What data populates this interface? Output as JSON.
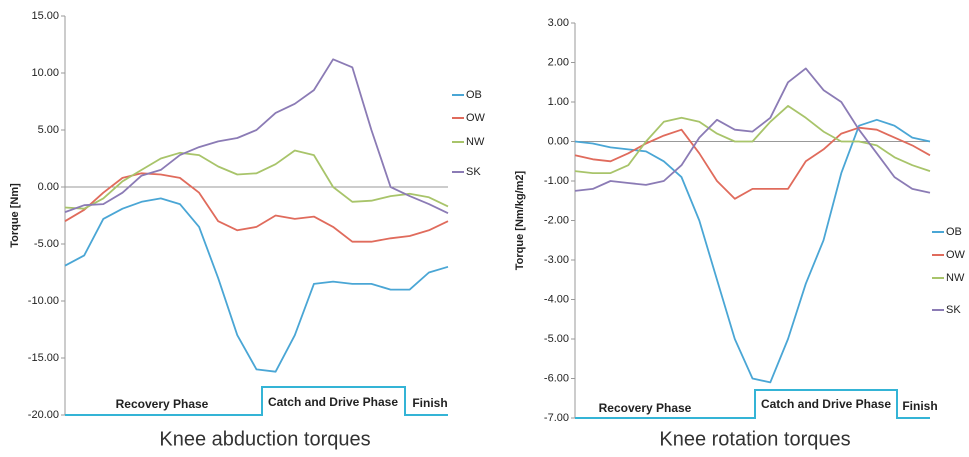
{
  "chart_data": [
    {
      "type": "line",
      "title": "Knee abduction torques",
      "ylabel": "Torque [Nm]",
      "ylim": [
        -20,
        15
      ],
      "yticks": [
        {
          "value": -20,
          "label": "-20.00"
        },
        {
          "value": -15,
          "label": "-15.00"
        },
        {
          "value": -10,
          "label": "-10.00"
        },
        {
          "value": -5,
          "label": "-5.00"
        },
        {
          "value": 0,
          "label": "0.00"
        },
        {
          "value": 5,
          "label": "5.00"
        },
        {
          "value": 10,
          "label": "10.00"
        },
        {
          "value": 15,
          "label": "15.00"
        }
      ],
      "phases": [
        "Recovery Phase",
        "Catch and Drive Phase",
        "Finish"
      ],
      "legend": "right",
      "series": [
        {
          "name": "OB",
          "color": "#4aa6d5",
          "values": [
            -6.9,
            -6,
            -2.8,
            -1.9,
            -1.3,
            -1.0,
            -1.5,
            -3.5,
            -8,
            -13,
            -16,
            -16.2,
            -13,
            -8.5,
            -8.3,
            -8.5,
            -8.5,
            -9,
            -9,
            -7.5,
            -7
          ]
        },
        {
          "name": "OW",
          "color": "#e06b5c",
          "values": [
            -3,
            -2,
            -0.5,
            0.8,
            1.2,
            1.1,
            0.8,
            -0.5,
            -3,
            -3.8,
            -3.5,
            -2.5,
            -2.8,
            -2.6,
            -3.5,
            -4.8,
            -4.8,
            -4.5,
            -4.3,
            -3.8,
            -3
          ]
        },
        {
          "name": "NW",
          "color": "#a8c46a",
          "values": [
            -1.8,
            -1.9,
            -1,
            0.5,
            1.5,
            2.5,
            3,
            2.8,
            1.8,
            1.1,
            1.2,
            2,
            3.2,
            2.8,
            0,
            -1.3,
            -1.2,
            -0.8,
            -0.6,
            -0.9,
            -1.7
          ]
        },
        {
          "name": "SK",
          "color": "#8b7bb5",
          "values": [
            -2.2,
            -1.6,
            -1.5,
            -0.5,
            1,
            1.5,
            2.8,
            3.5,
            4,
            4.3,
            5,
            6.5,
            7.3,
            8.5,
            11.2,
            10.5,
            5,
            0,
            -0.8,
            -1.5,
            -2.3
          ]
        }
      ]
    },
    {
      "type": "line",
      "title": "Knee rotation torques",
      "ylabel": "Torque [Nm/kg/m2]",
      "ylim": [
        -7,
        3
      ],
      "yticks": [
        {
          "value": -7,
          "label": "-7.00"
        },
        {
          "value": -6,
          "label": "-6.00"
        },
        {
          "value": -5,
          "label": "-5.00"
        },
        {
          "value": -4,
          "label": "-4.00"
        },
        {
          "value": -3,
          "label": "-3.00"
        },
        {
          "value": -2,
          "label": "-2.00"
        },
        {
          "value": -1,
          "label": "-1.00"
        },
        {
          "value": 0,
          "label": "0.00"
        },
        {
          "value": 1,
          "label": "1.00"
        },
        {
          "value": 2,
          "label": "2.00"
        },
        {
          "value": 3,
          "label": "3.00"
        }
      ],
      "phases": [
        "Recovery Phase",
        "Catch and Drive Phase",
        "Finish"
      ],
      "legend": "right",
      "series": [
        {
          "name": "OB",
          "color": "#4aa6d5",
          "values": [
            0,
            -0.05,
            -0.15,
            -0.2,
            -0.25,
            -0.5,
            -0.9,
            -2,
            -3.5,
            -5,
            -6,
            -6.1,
            -5,
            -3.6,
            -2.5,
            -0.8,
            0.4,
            0.55,
            0.4,
            0.1,
            0
          ]
        },
        {
          "name": "OW",
          "color": "#e06b5c",
          "values": [
            -0.35,
            -0.45,
            -0.5,
            -0.3,
            -0.05,
            0.15,
            0.3,
            -0.3,
            -1,
            -1.45,
            -1.2,
            -1.2,
            -1.2,
            -0.5,
            -0.2,
            0.2,
            0.35,
            0.3,
            0.1,
            -0.1,
            -0.35
          ]
        },
        {
          "name": "NW",
          "color": "#a8c46a",
          "values": [
            -0.75,
            -0.8,
            -0.8,
            -0.6,
            0,
            0.5,
            0.6,
            0.5,
            0.2,
            0,
            0,
            0.5,
            0.9,
            0.6,
            0.25,
            0,
            0,
            -0.1,
            -0.4,
            -0.6,
            -0.75
          ]
        },
        {
          "name": "SK",
          "color": "#8b7bb5",
          "values": [
            -1.25,
            -1.2,
            -1,
            -1.05,
            -1.1,
            -1,
            -0.6,
            0.1,
            0.55,
            0.3,
            0.25,
            0.6,
            1.5,
            1.85,
            1.3,
            1,
            0.3,
            -0.3,
            -0.9,
            -1.2,
            -1.3
          ]
        }
      ]
    }
  ]
}
